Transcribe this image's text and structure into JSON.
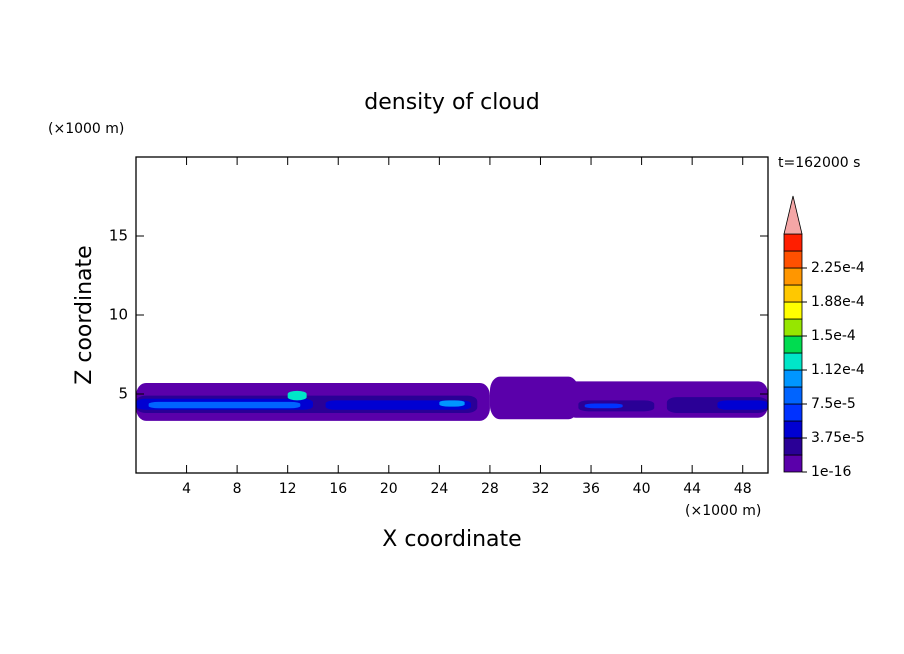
{
  "chart_data": {
    "type": "contour",
    "title": "density of cloud",
    "time_label": "t=162000 s",
    "xlabel": "X coordinate",
    "ylabel": "Z coordinate",
    "xunit": "(×1000 m)",
    "yunit": "(×1000 m)",
    "xlim": [
      0,
      50
    ],
    "xticks": [
      4,
      8,
      12,
      16,
      20,
      24,
      28,
      32,
      36,
      40,
      44,
      48
    ],
    "ylim": [
      0,
      20
    ],
    "yticks": [
      5,
      10,
      15
    ],
    "levels": [
      1e-16,
      1.875e-05,
      3.75e-05,
      5.625e-05,
      7.5e-05,
      9.375e-05,
      0.0001125,
      0.00013125,
      0.00015,
      0.00016875,
      0.0001875,
      0.00020625,
      0.000225,
      0.00024375
    ],
    "colors": [
      "#5a00aa",
      "#2a0096",
      "#0000d2",
      "#0032ff",
      "#0064ff",
      "#0096ff",
      "#00e6c8",
      "#00dc50",
      "#96e600",
      "#ffff00",
      "#ffc800",
      "#ff9600",
      "#ff5000",
      "#ff1e00"
    ],
    "extend_color": "#f4a6a6",
    "colorbar_ticks": [
      {
        "value": 1e-16,
        "label": "1e-16"
      },
      {
        "value": 3.75e-05,
        "label": "3.75e-5"
      },
      {
        "value": 7.5e-05,
        "label": "7.5e-5"
      },
      {
        "value": 0.0001125,
        "label": "1.12e-4"
      },
      {
        "value": 0.00015,
        "label": "1.5e-4"
      },
      {
        "value": 0.0001875,
        "label": "1.88e-4"
      },
      {
        "value": 0.000225,
        "label": "2.25e-4"
      }
    ],
    "regions": [
      {
        "level": 1e-16,
        "x": [
          0,
          28
        ],
        "z": [
          3.3,
          5.7
        ]
      },
      {
        "level": 1e-16,
        "x": [
          28,
          35
        ],
        "z": [
          3.4,
          6.1
        ]
      },
      {
        "level": 1e-16,
        "x": [
          34,
          50
        ],
        "z": [
          3.5,
          5.8
        ]
      },
      {
        "level": 1.875e-05,
        "x": [
          0,
          27
        ],
        "z": [
          3.8,
          4.9
        ]
      },
      {
        "level": 1.875e-05,
        "x": [
          35,
          41
        ],
        "z": [
          3.9,
          4.6
        ]
      },
      {
        "level": 1.875e-05,
        "x": [
          42,
          50
        ],
        "z": [
          3.8,
          4.8
        ]
      },
      {
        "level": 3.75e-05,
        "x": [
          0,
          14
        ],
        "z": [
          4.0,
          4.7
        ]
      },
      {
        "level": 3.75e-05,
        "x": [
          15,
          26.5
        ],
        "z": [
          4.0,
          4.6
        ]
      },
      {
        "level": 3.75e-05,
        "x": [
          46,
          50
        ],
        "z": [
          4.0,
          4.6
        ]
      },
      {
        "level": 5.625e-05,
        "x": [
          35.5,
          38.5
        ],
        "z": [
          4.1,
          4.4
        ]
      },
      {
        "level": 7.5e-05,
        "x": [
          1,
          13
        ],
        "z": [
          4.1,
          4.5
        ]
      },
      {
        "level": 9.375e-05,
        "x": [
          24,
          26
        ],
        "z": [
          4.2,
          4.6
        ]
      },
      {
        "level": 0.0001125,
        "x": [
          12,
          13.5
        ],
        "z": [
          4.6,
          5.2
        ]
      }
    ]
  }
}
